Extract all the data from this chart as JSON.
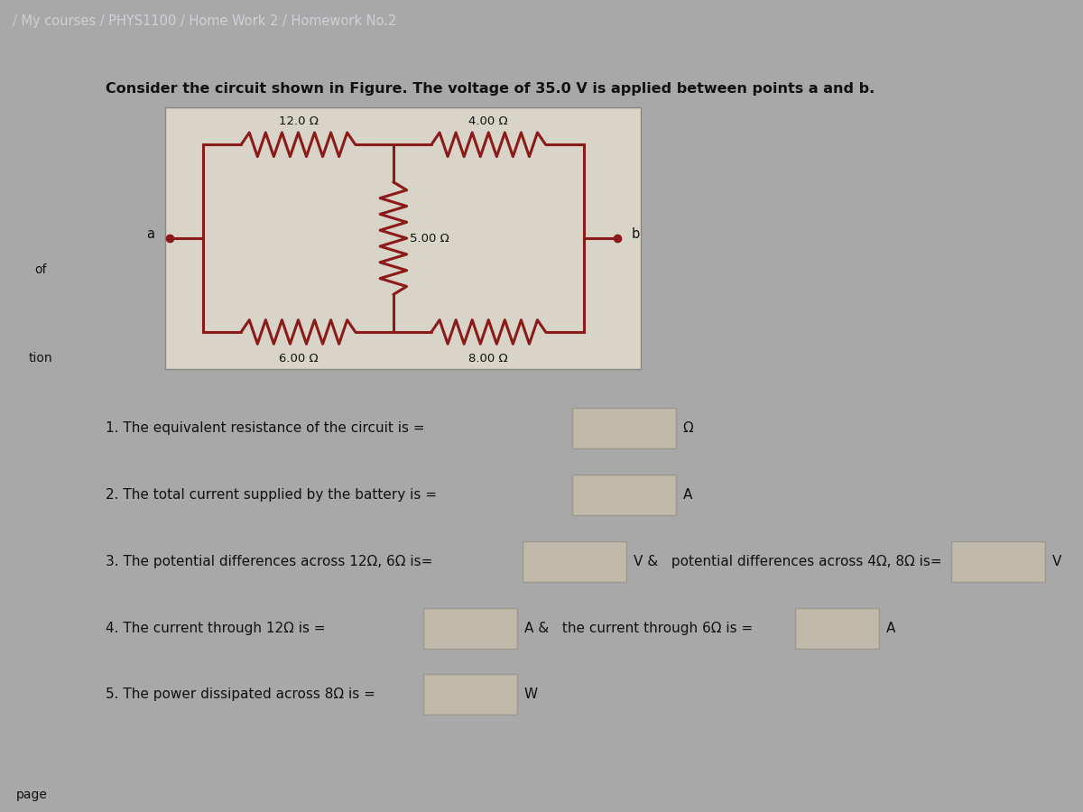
{
  "breadcrumb": "/ My courses / PHYS1100 / Home Work 2 / Homework No.2",
  "header_text": "Consider the circuit shown in Figure. The voltage of 35.0 V is applied between points a and b.",
  "bg_color_outer": "#a8a8a8",
  "bg_color_header": "#7a7a8a",
  "bg_color_content": "#c8c4bc",
  "bg_color_circuit": "#d8d4c8",
  "bg_color_box": "#c0b8a8",
  "resistors": {
    "R12": "12.0 Ω",
    "R4": "4.00 Ω",
    "R5": "5.00 Ω",
    "R6": "6.00 Ω",
    "R8": "8.00 Ω"
  },
  "q1": "1. The equivalent resistance of the circuit is =",
  "q2": "2. The total current supplied by the battery is =",
  "q3a": "3. The potential differences across 12Ω, 6Ω is=",
  "q3b": "V &   potential differences across 4Ω, 8Ω is=",
  "q3c": "V",
  "q4a": "4. The current through 12Ω is =",
  "q4b": "A &   the current through 6Ω is =",
  "q4c": "A",
  "q5": "5. The power dissipated across 8Ω is =",
  "q1_end": "Ω",
  "q2_end": "A",
  "q5_end": "W",
  "left_label1": "of",
  "left_label2": "tion",
  "bottom_label": "page",
  "resistor_color": "#8b1a1a",
  "text_color": "#111111"
}
